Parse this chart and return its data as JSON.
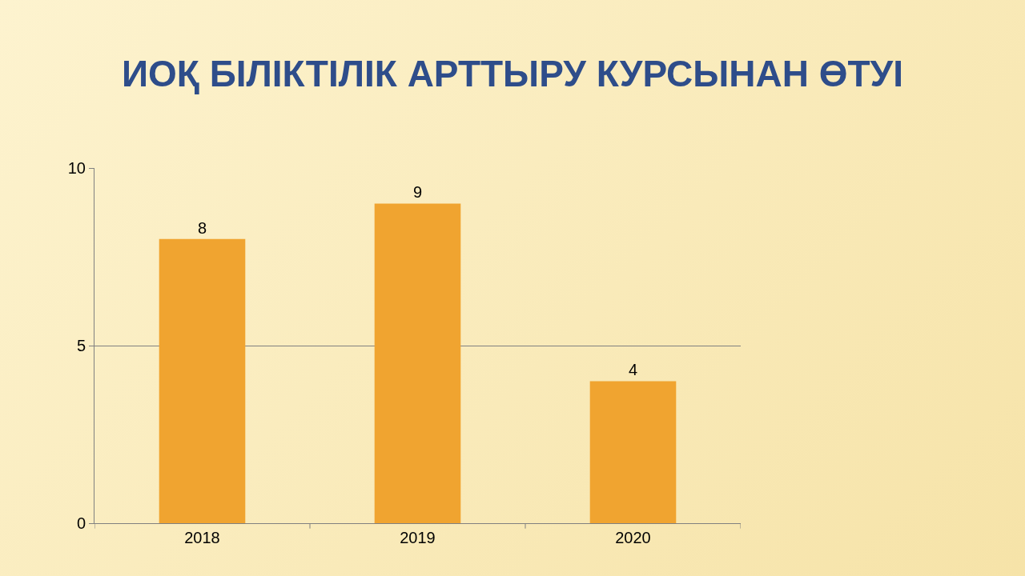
{
  "chart_data": {
    "type": "bar",
    "title": "ИОҚ БІЛІКТІЛІК АРТТЫРУ КУРСЫНАН ӨТУІ",
    "categories": [
      "2018",
      "2019",
      "2020"
    ],
    "values": [
      8,
      9,
      4
    ],
    "color": "#f0a430",
    "ylim": [
      0,
      10
    ],
    "yticks": [
      0,
      5,
      10
    ],
    "grid": "y",
    "data_labels": true,
    "legend": false
  }
}
